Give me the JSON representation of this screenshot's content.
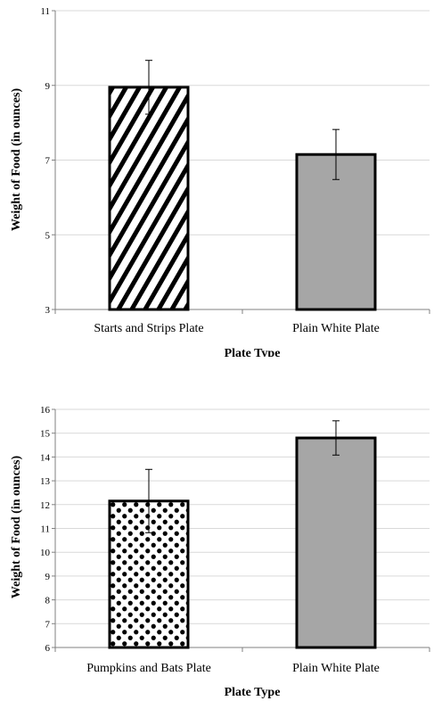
{
  "chart_data": [
    {
      "type": "bar",
      "categories": [
        "Starts and Strips Plate",
        "Plain White Plate"
      ],
      "values": [
        8.95,
        7.15
      ],
      "error": [
        0.72,
        0.67
      ],
      "ylim": [
        3,
        11
      ],
      "yticks": [
        3,
        5,
        7,
        9,
        11
      ],
      "gridlines": true,
      "xlabel": "Plate Type",
      "ylabel": "Weight of Food (in ounces)",
      "fills": [
        "diagonal-stripes",
        "#a6a6a6"
      ]
    },
    {
      "type": "bar",
      "categories": [
        "Pumpkins and Bats Plate",
        "Plain White Plate"
      ],
      "values": [
        12.15,
        14.8
      ],
      "error": [
        1.33,
        0.72
      ],
      "ylim": [
        6,
        16
      ],
      "yticks": [
        6,
        7,
        8,
        9,
        10,
        11,
        12,
        13,
        14,
        15,
        16
      ],
      "gridlines": true,
      "xlabel": "Plate Type",
      "ylabel": "Weight of Food (in ounces)",
      "fills": [
        "polka-dots",
        "#a6a6a6"
      ]
    }
  ]
}
